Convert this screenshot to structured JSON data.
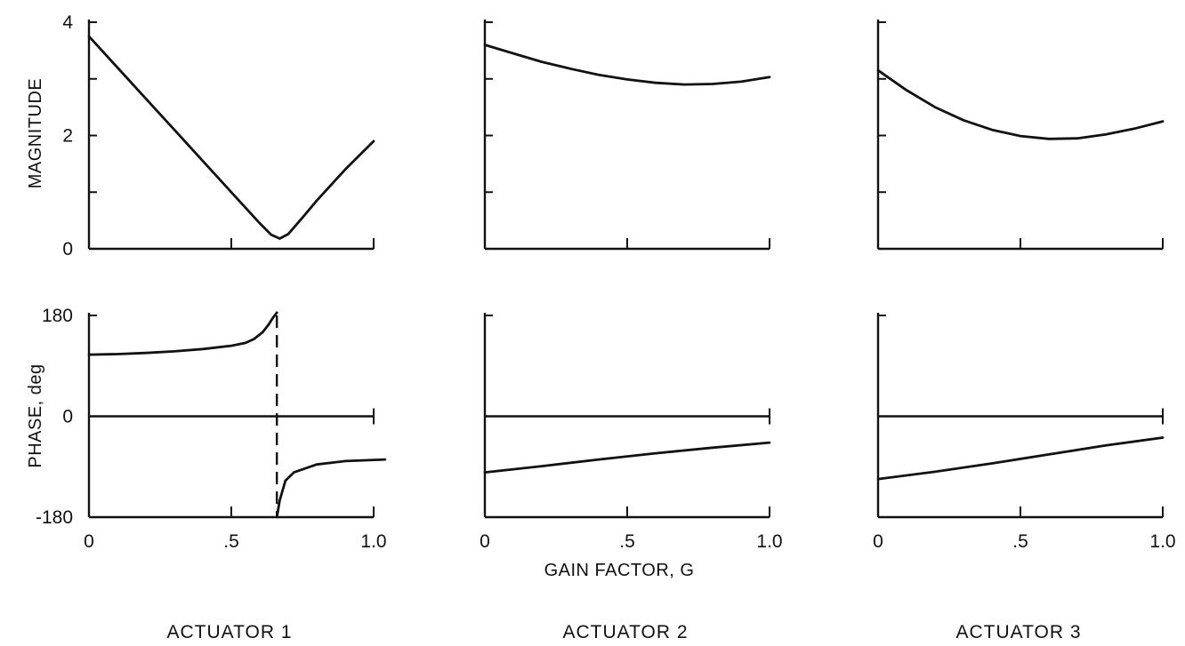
{
  "figure": {
    "xlabel": "GAIN FACTOR, G",
    "magnitude_ylabel": "MAGNITUDE",
    "phase_ylabel": "PHASE, deg"
  },
  "chart_data": [
    {
      "type": "line",
      "panel": "magnitude",
      "title": "ACTUATOR 1",
      "ylabel": "MAGNITUDE",
      "xlim": [
        0,
        1.0
      ],
      "ylim": [
        0,
        4
      ],
      "xticks": [
        0,
        0.5,
        1.0
      ],
      "yticks": [
        0,
        1,
        2,
        3,
        4
      ],
      "ytick_labels": [
        "0",
        "",
        "2",
        "",
        "4"
      ],
      "series": [
        {
          "x": [
            0,
            0.1,
            0.2,
            0.3,
            0.4,
            0.5,
            0.6,
            0.64,
            0.67,
            0.7,
            0.75,
            0.8,
            0.9,
            1.0
          ],
          "y": [
            3.75,
            3.2,
            2.65,
            2.1,
            1.55,
            1.0,
            0.45,
            0.25,
            0.18,
            0.26,
            0.55,
            0.85,
            1.4,
            1.9
          ]
        }
      ]
    },
    {
      "type": "line",
      "panel": "phase",
      "title": "ACTUATOR 1",
      "ylabel": "PHASE, deg",
      "xlabel": "",
      "xlim": [
        0,
        1.0
      ],
      "ylim": [
        -180,
        180
      ],
      "xticks": [
        0,
        0.5,
        1.0
      ],
      "xtick_labels": [
        "0",
        ".5",
        "1.0"
      ],
      "yticks": [
        -180,
        0,
        180
      ],
      "ytick_labels": [
        "-180",
        "0",
        "180"
      ],
      "zero_line": true,
      "discontinuity_x": 0.66,
      "series": [
        {
          "x": [
            0,
            0.1,
            0.2,
            0.3,
            0.4,
            0.5,
            0.55,
            0.58,
            0.61,
            0.63,
            0.645,
            0.66
          ],
          "y": [
            110,
            111,
            113,
            116,
            120,
            126,
            131,
            138,
            150,
            163,
            175,
            185
          ]
        },
        {
          "x": [
            0.66,
            0.67,
            0.69,
            0.72,
            0.8,
            0.9,
            1.04
          ],
          "y": [
            -180,
            -150,
            -115,
            -100,
            -86,
            -80,
            -77
          ]
        }
      ]
    },
    {
      "type": "line",
      "panel": "magnitude",
      "title": "ACTUATOR 2",
      "xlim": [
        0,
        1.0
      ],
      "ylim": [
        0,
        4
      ],
      "xticks": [
        0,
        0.5,
        1.0
      ],
      "yticks": [
        0,
        1,
        2,
        3,
        4
      ],
      "series": [
        {
          "x": [
            0,
            0.1,
            0.2,
            0.3,
            0.4,
            0.5,
            0.6,
            0.7,
            0.8,
            0.9,
            1.0
          ],
          "y": [
            3.6,
            3.45,
            3.3,
            3.18,
            3.07,
            2.99,
            2.93,
            2.9,
            2.91,
            2.95,
            3.03
          ]
        }
      ]
    },
    {
      "type": "line",
      "panel": "phase",
      "title": "ACTUATOR 2",
      "xlabel": "GAIN FACTOR, G",
      "xlim": [
        0,
        1.0
      ],
      "ylim": [
        -180,
        180
      ],
      "xticks": [
        0,
        0.5,
        1.0
      ],
      "xtick_labels": [
        "0",
        ".5",
        "1.0"
      ],
      "yticks": [
        -180,
        0,
        180
      ],
      "zero_line": true,
      "series": [
        {
          "x": [
            0,
            0.2,
            0.4,
            0.6,
            0.8,
            1.0
          ],
          "y": [
            -100,
            -89,
            -77,
            -66,
            -56,
            -47
          ]
        }
      ]
    },
    {
      "type": "line",
      "panel": "magnitude",
      "title": "ACTUATOR 3",
      "xlim": [
        0,
        1.0
      ],
      "ylim": [
        0,
        4
      ],
      "xticks": [
        0,
        0.5,
        1.0
      ],
      "yticks": [
        0,
        1,
        2,
        3,
        4
      ],
      "series": [
        {
          "x": [
            0,
            0.1,
            0.2,
            0.3,
            0.4,
            0.5,
            0.6,
            0.7,
            0.8,
            0.9,
            1.0
          ],
          "y": [
            3.15,
            2.8,
            2.5,
            2.27,
            2.1,
            1.99,
            1.94,
            1.95,
            2.02,
            2.12,
            2.25
          ]
        }
      ]
    },
    {
      "type": "line",
      "panel": "phase",
      "title": "ACTUATOR 3",
      "xlabel": "",
      "xlim": [
        0,
        1.0
      ],
      "ylim": [
        -180,
        180
      ],
      "xticks": [
        0,
        0.5,
        1.0
      ],
      "xtick_labels": [
        "0",
        ".5",
        "1.0"
      ],
      "yticks": [
        -180,
        0,
        180
      ],
      "zero_line": true,
      "series": [
        {
          "x": [
            0,
            0.2,
            0.4,
            0.6,
            0.8,
            1.0
          ],
          "y": [
            -112,
            -99,
            -84,
            -68,
            -52,
            -38
          ]
        }
      ]
    }
  ]
}
